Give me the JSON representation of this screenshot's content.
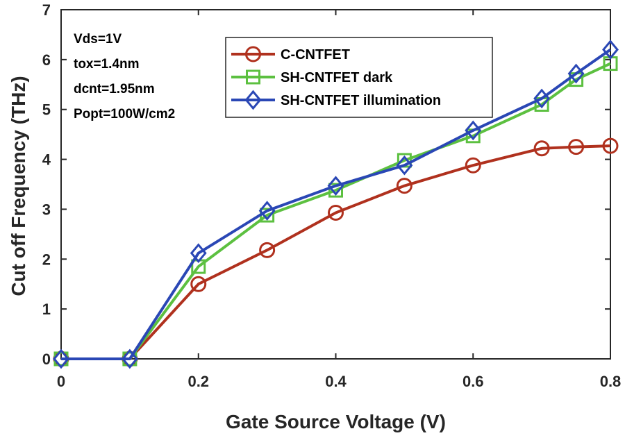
{
  "chart_data": {
    "type": "line",
    "xlabel": "Gate Source Voltage  (V)",
    "ylabel": "Cut off Frequency  (THz)",
    "xlim": [
      0,
      0.8
    ],
    "ylim": [
      0,
      7
    ],
    "xticks": [
      0,
      0.2,
      0.4,
      0.6,
      0.8
    ],
    "xtick_labels": [
      "0",
      "0.2",
      "0.4",
      "0.6",
      "0.8"
    ],
    "yticks": [
      0,
      1,
      2,
      3,
      4,
      5,
      6,
      7
    ],
    "ytick_labels": [
      "0",
      "1",
      "2",
      "3",
      "4",
      "5",
      "6",
      "7"
    ],
    "grid": false,
    "legend_position": "top-center",
    "annotations": [
      "Vds=1V",
      "tox=1.4nm",
      "dcnt=1.95nm",
      "Popt=100W/cm2"
    ],
    "series": [
      {
        "name": "C-CNTFET",
        "color": "#b0311e",
        "marker": "circle",
        "x": [
          0,
          0.1,
          0.2,
          0.3,
          0.4,
          0.5,
          0.6,
          0.7,
          0.75,
          0.8
        ],
        "y": [
          0,
          0,
          1.5,
          2.18,
          2.93,
          3.47,
          3.88,
          4.22,
          4.25,
          4.27
        ]
      },
      {
        "name": "SH-CNTFET dark",
        "color": "#5cc040",
        "marker": "square",
        "x": [
          0,
          0.1,
          0.2,
          0.3,
          0.4,
          0.5,
          0.6,
          0.7,
          0.75,
          0.8
        ],
        "y": [
          0,
          0,
          1.85,
          2.88,
          3.38,
          3.98,
          4.47,
          5.1,
          5.6,
          5.92
        ]
      },
      {
        "name": "SH-CNTFET illumination",
        "color": "#2a47b5",
        "marker": "diamond",
        "x": [
          0,
          0.1,
          0.2,
          0.3,
          0.4,
          0.5,
          0.6,
          0.7,
          0.75,
          0.8
        ],
        "y": [
          0,
          0,
          2.12,
          2.97,
          3.47,
          3.88,
          4.58,
          5.22,
          5.72,
          6.2
        ]
      }
    ]
  }
}
